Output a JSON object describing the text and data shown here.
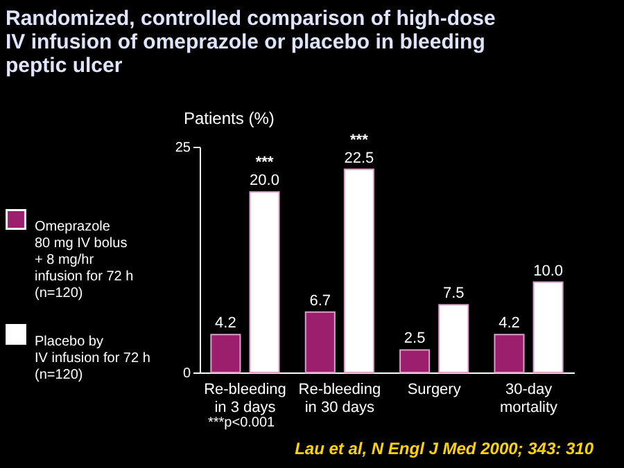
{
  "chart_data": {
    "type": "bar",
    "title": "Randomized, controlled comparison of high-dose\nIV infusion of omeprazole or placebo in bleeding\npeptic ulcer",
    "ylabel": "Patients (%)",
    "categories": [
      "Re-bleeding\nin 3 days",
      "Re-bleeding\nin 30 days",
      "Surgery",
      "30-day\nmortality"
    ],
    "series": [
      {
        "name": "Omeprazole\n80 mg IV bolus\n+ 8 mg/hr\ninfusion for 72 h\n(n=120)",
        "color": "#9c1f6e",
        "values": [
          4.2,
          6.7,
          2.5,
          4.2
        ],
        "value_labels": [
          "4.2",
          "6.7",
          "2.5",
          "4.2"
        ]
      },
      {
        "name": "Placebo by\nIV infusion for 72 h\n(n=120)",
        "color": "#ffffff",
        "values": [
          20.0,
          22.5,
          7.5,
          10.0
        ],
        "value_labels": [
          "20.0",
          "22.5",
          "7.5",
          "10.0"
        ]
      }
    ],
    "ylim": [
      0,
      25
    ],
    "yticks": [
      0,
      25
    ],
    "grid": false,
    "legend": "left",
    "annotations": [
      {
        "text": "***",
        "x": "Re-bleeding\nin 3 days",
        "y": 20.0
      },
      {
        "text": "***",
        "x": "Re-bleeding\nin 30 days",
        "y": 22.5
      },
      "***p<0.001",
      "Lau et al, N Engl J Med 2000; 343: 310"
    ]
  }
}
